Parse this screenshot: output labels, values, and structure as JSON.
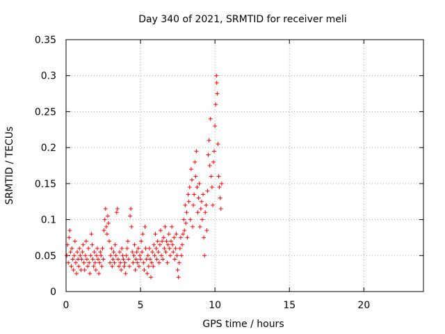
{
  "chart_data": {
    "type": "scatter",
    "title": "Day 340 of 2021, SRMTID for receiver meli",
    "xlabel": "GPS time / hours",
    "ylabel": "SRMTID / TECUs",
    "xlim": [
      0,
      24
    ],
    "ylim": [
      0,
      0.35
    ],
    "xticks": [
      0,
      5,
      10,
      15,
      20
    ],
    "xtick_labels": [
      "0",
      "5",
      "10",
      "15",
      "20"
    ],
    "yticks": [
      0,
      0.05,
      0.1,
      0.15,
      0.2,
      0.25,
      0.3,
      0.35
    ],
    "ytick_labels": [
      "0",
      "0.05",
      "0.1",
      "0.15",
      "0.2",
      "0.25",
      "0.3",
      "0.35"
    ],
    "grid": true,
    "marker": "+",
    "colors": {
      "series": "#ff0000",
      "axis": "#000000",
      "grid": "#a0a0a0"
    },
    "series": [
      {
        "name": "SRMTID",
        "points": [
          [
            0.05,
            0.05
          ],
          [
            0.1,
            0.065
          ],
          [
            0.15,
            0.04
          ],
          [
            0.2,
            0.075
          ],
          [
            0.25,
            0.085
          ],
          [
            0.3,
            0.055
          ],
          [
            0.35,
            0.035
          ],
          [
            0.4,
            0.06
          ],
          [
            0.45,
            0.045
          ],
          [
            0.5,
            0.03
          ],
          [
            0.55,
            0.05
          ],
          [
            0.6,
            0.07
          ],
          [
            0.65,
            0.04
          ],
          [
            0.7,
            0.025
          ],
          [
            0.75,
            0.055
          ],
          [
            0.8,
            0.045
          ],
          [
            0.85,
            0.035
          ],
          [
            0.9,
            0.06
          ],
          [
            0.95,
            0.05
          ],
          [
            1.0,
            0.03
          ],
          [
            1.05,
            0.045
          ],
          [
            1.1,
            0.055
          ],
          [
            1.15,
            0.065
          ],
          [
            1.2,
            0.04
          ],
          [
            1.25,
            0.03
          ],
          [
            1.3,
            0.05
          ],
          [
            1.35,
            0.07
          ],
          [
            1.4,
            0.045
          ],
          [
            1.45,
            0.035
          ],
          [
            1.5,
            0.06
          ],
          [
            1.55,
            0.04
          ],
          [
            1.6,
            0.025
          ],
          [
            1.65,
            0.05
          ],
          [
            1.7,
            0.08
          ],
          [
            1.75,
            0.065
          ],
          [
            1.8,
            0.045
          ],
          [
            1.85,
            0.035
          ],
          [
            1.9,
            0.055
          ],
          [
            1.95,
            0.04
          ],
          [
            2.0,
            0.03
          ],
          [
            2.05,
            0.05
          ],
          [
            2.1,
            0.06
          ],
          [
            2.15,
            0.045
          ],
          [
            2.2,
            0.025
          ],
          [
            2.25,
            0.04
          ],
          [
            2.3,
            0.055
          ],
          [
            2.35,
            0.05
          ],
          [
            2.4,
            0.035
          ],
          [
            2.45,
            0.06
          ],
          [
            2.5,
            0.045
          ],
          [
            2.55,
            0.085
          ],
          [
            2.6,
            0.1
          ],
          [
            2.65,
            0.115
          ],
          [
            2.7,
            0.09
          ],
          [
            2.75,
            0.08
          ],
          [
            2.8,
            0.105
          ],
          [
            2.85,
            0.095
          ],
          [
            2.9,
            0.07
          ],
          [
            2.95,
            0.04
          ],
          [
            3.0,
            0.05
          ],
          [
            3.05,
            0.06
          ],
          [
            3.1,
            0.035
          ],
          [
            3.15,
            0.045
          ],
          [
            3.2,
            0.055
          ],
          [
            3.25,
            0.04
          ],
          [
            3.3,
            0.065
          ],
          [
            3.35,
            0.05
          ],
          [
            3.4,
            0.11
          ],
          [
            3.45,
            0.115
          ],
          [
            3.5,
            0.045
          ],
          [
            3.55,
            0.035
          ],
          [
            3.6,
            0.055
          ],
          [
            3.65,
            0.04
          ],
          [
            3.7,
            0.03
          ],
          [
            3.75,
            0.06
          ],
          [
            3.8,
            0.05
          ],
          [
            3.85,
            0.045
          ],
          [
            3.9,
            0.035
          ],
          [
            3.95,
            0.04
          ],
          [
            4.0,
            0.025
          ],
          [
            4.05,
            0.05
          ],
          [
            4.1,
            0.06
          ],
          [
            4.15,
            0.07
          ],
          [
            4.2,
            0.045
          ],
          [
            4.25,
            0.035
          ],
          [
            4.3,
            0.105
          ],
          [
            4.35,
            0.115
          ],
          [
            4.4,
            0.09
          ],
          [
            4.45,
            0.055
          ],
          [
            4.5,
            0.04
          ],
          [
            4.55,
            0.05
          ],
          [
            4.6,
            0.065
          ],
          [
            4.65,
            0.03
          ],
          [
            4.7,
            0.045
          ],
          [
            4.75,
            0.055
          ],
          [
            4.8,
            0.04
          ],
          [
            4.85,
            0.06
          ],
          [
            4.9,
            0.035
          ],
          [
            4.95,
            0.05
          ],
          [
            5.0,
            0.045
          ],
          [
            5.05,
            0.07
          ],
          [
            5.1,
            0.055
          ],
          [
            5.15,
            0.08
          ],
          [
            5.2,
            0.04
          ],
          [
            5.25,
            0.03
          ],
          [
            5.3,
            0.09
          ],
          [
            5.35,
            0.06
          ],
          [
            5.4,
            0.045
          ],
          [
            5.45,
            0.025
          ],
          [
            5.5,
            0.05
          ],
          [
            5.55,
            0.035
          ],
          [
            5.6,
            0.06
          ],
          [
            5.65,
            0.045
          ],
          [
            5.7,
            0.02
          ],
          [
            5.75,
            0.04
          ],
          [
            5.8,
            0.055
          ],
          [
            5.85,
            0.035
          ],
          [
            5.9,
            0.065
          ],
          [
            5.95,
            0.05
          ],
          [
            6.0,
            0.08
          ],
          [
            6.05,
            0.06
          ],
          [
            6.1,
            0.045
          ],
          [
            6.15,
            0.07
          ],
          [
            6.2,
            0.055
          ],
          [
            6.25,
            0.04
          ],
          [
            6.3,
            0.065
          ],
          [
            6.35,
            0.085
          ],
          [
            6.4,
            0.05
          ],
          [
            6.45,
            0.07
          ],
          [
            6.5,
            0.045
          ],
          [
            6.55,
            0.075
          ],
          [
            6.6,
            0.06
          ],
          [
            6.65,
            0.09
          ],
          [
            6.7,
            0.055
          ],
          [
            6.75,
            0.07
          ],
          [
            6.8,
            0.04
          ],
          [
            6.85,
            0.065
          ],
          [
            6.9,
            0.08
          ],
          [
            6.95,
            0.06
          ],
          [
            7.0,
            0.05
          ],
          [
            7.05,
            0.07
          ],
          [
            7.1,
            0.09
          ],
          [
            7.15,
            0.065
          ],
          [
            7.2,
            0.055
          ],
          [
            7.25,
            0.075
          ],
          [
            7.3,
            0.045
          ],
          [
            7.35,
            0.06
          ],
          [
            7.4,
            0.08
          ],
          [
            7.45,
            0.05
          ],
          [
            7.5,
            0.03
          ],
          [
            7.55,
            0.02
          ],
          [
            7.6,
            0.04
          ],
          [
            7.65,
            0.06
          ],
          [
            7.7,
            0.075
          ],
          [
            7.75,
            0.05
          ],
          [
            7.8,
            0.065
          ],
          [
            7.85,
            0.08
          ],
          [
            7.9,
            0.1
          ],
          [
            7.95,
            0.085
          ],
          [
            8.0,
            0.12
          ],
          [
            8.05,
            0.095
          ],
          [
            8.1,
            0.11
          ],
          [
            8.15,
            0.075
          ],
          [
            8.2,
            0.135
          ],
          [
            8.25,
            0.125
          ],
          [
            8.3,
            0.145
          ],
          [
            8.35,
            0.1
          ],
          [
            8.4,
            0.17
          ],
          [
            8.45,
            0.155
          ],
          [
            8.5,
            0.09
          ],
          [
            8.55,
            0.12
          ],
          [
            8.6,
            0.135
          ],
          [
            8.65,
            0.18
          ],
          [
            8.7,
            0.16
          ],
          [
            8.75,
            0.195
          ],
          [
            8.8,
            0.145
          ],
          [
            8.85,
            0.11
          ],
          [
            8.9,
            0.13
          ],
          [
            8.95,
            0.15
          ],
          [
            9.0,
            0.09
          ],
          [
            9.05,
            0.115
          ],
          [
            9.1,
            0.125
          ],
          [
            9.15,
            0.1
          ],
          [
            9.2,
            0.135
          ],
          [
            9.25,
            0.075
          ],
          [
            9.3,
            0.05
          ],
          [
            9.35,
            0.11
          ],
          [
            9.4,
            0.12
          ],
          [
            9.45,
            0.085
          ],
          [
            9.5,
            0.14
          ],
          [
            9.55,
            0.19
          ],
          [
            9.6,
            0.21
          ],
          [
            9.65,
            0.175
          ],
          [
            9.7,
            0.24
          ],
          [
            9.75,
            0.16
          ],
          [
            9.8,
            0.145
          ],
          [
            9.85,
            0.12
          ],
          [
            9.9,
            0.18
          ],
          [
            9.95,
            0.195
          ],
          [
            10.0,
            0.23
          ],
          [
            10.05,
            0.26
          ],
          [
            10.1,
            0.3
          ],
          [
            10.12,
            0.29
          ],
          [
            10.15,
            0.275
          ],
          [
            10.2,
            0.205
          ],
          [
            10.25,
            0.16
          ],
          [
            10.3,
            0.145
          ],
          [
            10.35,
            0.13
          ],
          [
            10.4,
            0.115
          ],
          [
            10.45,
            0.15
          ]
        ]
      }
    ]
  }
}
